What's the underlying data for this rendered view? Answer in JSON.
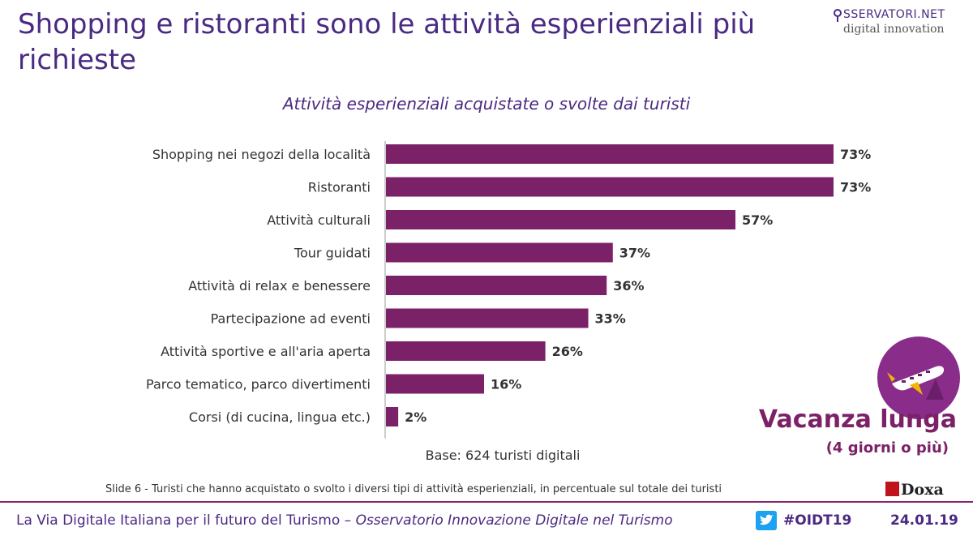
{
  "slide": {
    "title": "Shopping e ristoranti sono le attività esperienziali più richieste",
    "logo_top": "SSERVATORI.NET",
    "logo_bottom": "digital innovation",
    "base_note": "Base: 624 turisti digitali",
    "slide_note": "Slide 6 - Turisti che hanno acquistato o svolto i diversi tipi di attività esperienziali, in percentuale sul totale dei turisti",
    "doxa": "Doxa",
    "badge_title": "Vacanza lunga",
    "badge_sub": "(4 giorni o più)",
    "footer_left": "La Via Digitale Italiana per il futuro del Turismo –",
    "footer_left_italic": "Osservatorio Innovazione Digitale nel Turismo",
    "hashtag": "#OIDT19",
    "date": "24.01.19"
  },
  "chart_data": {
    "type": "bar",
    "orientation": "horizontal",
    "title": "Attività esperienziali acquistate o svolte dai turisti",
    "categories": [
      "Shopping nei negozi della località",
      "Ristoranti",
      "Attività culturali",
      "Tour guidati",
      "Attività di relax e benessere",
      "Partecipazione ad eventi",
      "Attività sportive e all'aria aperta",
      "Parco tematico, parco divertimenti",
      "Corsi (di cucina, lingua etc.)"
    ],
    "values": [
      73,
      73,
      57,
      37,
      36,
      33,
      26,
      16,
      2
    ],
    "value_labels": [
      "73%",
      "73%",
      "57%",
      "37%",
      "36%",
      "33%",
      "26%",
      "16%",
      "2%"
    ],
    "bar_color": "#7b2167",
    "xlim": [
      0,
      73
    ],
    "xlabel": "",
    "ylabel": "",
    "grid": false
  }
}
